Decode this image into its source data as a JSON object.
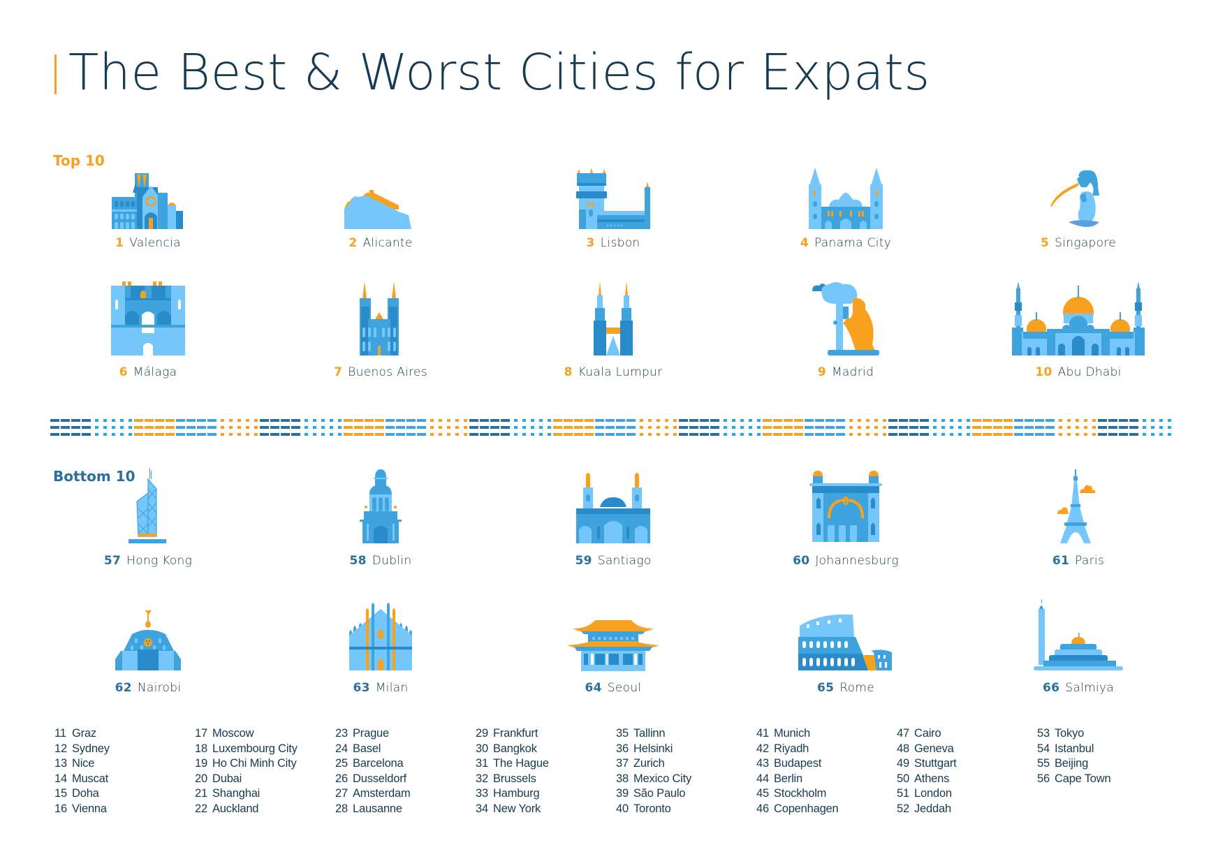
{
  "title": "The Best & Worst Cities for Expats",
  "colors": {
    "navy": "#163a52",
    "orange": "#f7a11e",
    "light_blue": "#74c6fb",
    "mid_blue": "#3fa3de",
    "dark_blue": "#2a8bcb",
    "section_blue": "#2a6f9e"
  },
  "top10": {
    "heading": "Top 10",
    "cities": [
      {
        "rank": "1",
        "name": "Valencia",
        "icon": "valencia-cathedral-icon"
      },
      {
        "rank": "2",
        "name": "Alicante",
        "icon": "alicante-castle-hill-icon"
      },
      {
        "rank": "3",
        "name": "Lisbon",
        "icon": "belem-tower-icon"
      },
      {
        "rank": "4",
        "name": "Panama City",
        "icon": "panama-cathedral-icon"
      },
      {
        "rank": "5",
        "name": "Singapore",
        "icon": "merlion-icon"
      },
      {
        "rank": "6",
        "name": "Málaga",
        "icon": "malaga-fortress-icon"
      },
      {
        "rank": "7",
        "name": "Buenos Aires",
        "icon": "buenos-aires-cathedral-icon"
      },
      {
        "rank": "8",
        "name": "Kuala Lumpur",
        "icon": "petronas-towers-icon"
      },
      {
        "rank": "9",
        "name": "Madrid",
        "icon": "bear-and-strawberry-tree-icon"
      },
      {
        "rank": "10",
        "name": "Abu Dhabi",
        "icon": "grand-mosque-icon"
      }
    ]
  },
  "bottom10": {
    "heading": "Bottom 10",
    "cities": [
      {
        "rank": "57",
        "name": "Hong Kong",
        "icon": "bank-of-china-tower-icon"
      },
      {
        "rank": "58",
        "name": "Dublin",
        "icon": "campanile-icon"
      },
      {
        "rank": "59",
        "name": "Santiago",
        "icon": "santiago-cathedral-icon"
      },
      {
        "rank": "60",
        "name": "Johannesburg",
        "icon": "johannesburg-building-icon"
      },
      {
        "rank": "61",
        "name": "Paris",
        "icon": "eiffel-tower-icon"
      },
      {
        "rank": "62",
        "name": "Nairobi",
        "icon": "nairobi-kicc-icon"
      },
      {
        "rank": "63",
        "name": "Milan",
        "icon": "milan-cathedral-icon"
      },
      {
        "rank": "64",
        "name": "Seoul",
        "icon": "gyeongbokgung-palace-icon"
      },
      {
        "rank": "65",
        "name": "Rome",
        "icon": "colosseum-icon"
      },
      {
        "rank": "66",
        "name": "Salmiya",
        "icon": "salmiya-mosque-icon"
      }
    ]
  },
  "rest_list": [
    [
      {
        "n": "11",
        "c": "Graz"
      },
      {
        "n": "12",
        "c": "Sydney"
      },
      {
        "n": "13",
        "c": "Nice"
      },
      {
        "n": "14",
        "c": "Muscat"
      },
      {
        "n": "15",
        "c": "Doha"
      },
      {
        "n": "16",
        "c": "Vienna"
      }
    ],
    [
      {
        "n": "17",
        "c": "Moscow"
      },
      {
        "n": "18",
        "c": "Luxembourg City"
      },
      {
        "n": "19",
        "c": "Ho Chi Minh City"
      },
      {
        "n": "20",
        "c": "Dubai"
      },
      {
        "n": "21",
        "c": "Shanghai"
      },
      {
        "n": "22",
        "c": "Auckland"
      }
    ],
    [
      {
        "n": "23",
        "c": "Prague"
      },
      {
        "n": "24",
        "c": "Basel"
      },
      {
        "n": "25",
        "c": "Barcelona"
      },
      {
        "n": "26",
        "c": "Dusseldorf"
      },
      {
        "n": "27",
        "c": "Amsterdam"
      },
      {
        "n": "28",
        "c": "Lausanne"
      }
    ],
    [
      {
        "n": "29",
        "c": "Frankfurt"
      },
      {
        "n": "30",
        "c": "Bangkok"
      },
      {
        "n": "31",
        "c": "The Hague"
      },
      {
        "n": "32",
        "c": "Brussels"
      },
      {
        "n": "33",
        "c": "Hamburg"
      },
      {
        "n": "34",
        "c": "New York"
      }
    ],
    [
      {
        "n": "35",
        "c": "Tallinn"
      },
      {
        "n": "36",
        "c": "Helsinki"
      },
      {
        "n": "37",
        "c": "Zurich"
      },
      {
        "n": "38",
        "c": "Mexico City"
      },
      {
        "n": "39",
        "c": "São Paulo"
      },
      {
        "n": "40",
        "c": "Toronto"
      }
    ],
    [
      {
        "n": "41",
        "c": "Munich"
      },
      {
        "n": "42",
        "c": "Riyadh"
      },
      {
        "n": "43",
        "c": "Budapest"
      },
      {
        "n": "44",
        "c": "Berlin"
      },
      {
        "n": "45",
        "c": "Stockholm"
      },
      {
        "n": "46",
        "c": "Copenhagen"
      }
    ],
    [
      {
        "n": "47",
        "c": "Cairo"
      },
      {
        "n": "48",
        "c": "Geneva"
      },
      {
        "n": "49",
        "c": "Stuttgart"
      },
      {
        "n": "50",
        "c": "Athens"
      },
      {
        "n": "51",
        "c": "London"
      },
      {
        "n": "52",
        "c": "Jeddah"
      }
    ],
    [
      {
        "n": "53",
        "c": "Tokyo"
      },
      {
        "n": "54",
        "c": "Istanbul"
      },
      {
        "n": "55",
        "c": "Beijing"
      },
      {
        "n": "56",
        "c": "Cape Town"
      }
    ]
  ]
}
